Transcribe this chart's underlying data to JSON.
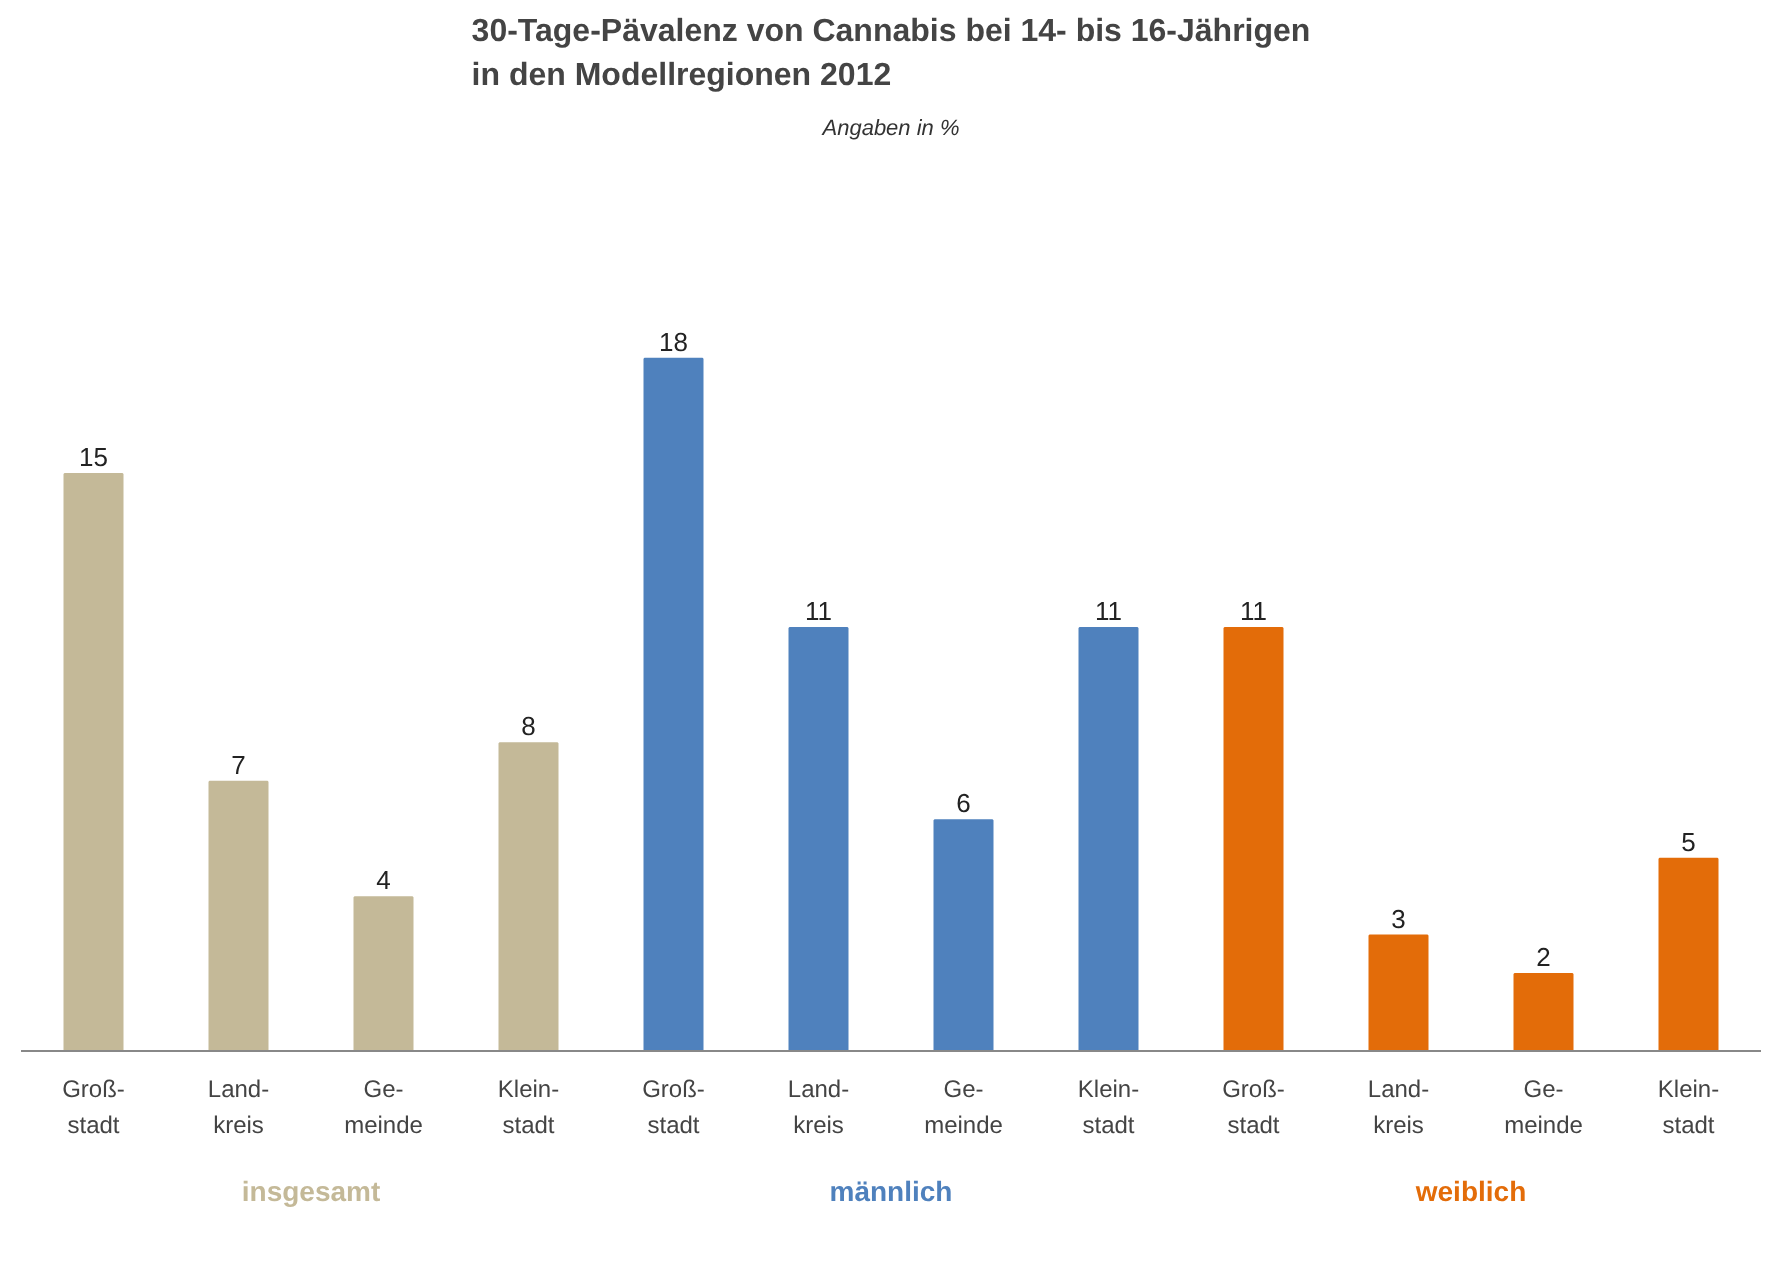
{
  "chart_data": {
    "type": "bar",
    "title": "30-Tage-Pävalenz von Cannabis bei 14- bis 16-Jährigen\nin den Modellregionen 2012",
    "subtitle": "Angaben in %",
    "categories": [
      "Groß-\nstadt",
      "Land-\nkreis",
      "Ge-\nmeinde",
      "Klein-\nstadt",
      "Groß-\nstadt",
      "Land-\nkreis",
      "Ge-\nmeinde",
      "Klein-\nstadt",
      "Groß-\nstadt",
      "Land-\nkreis",
      "Ge-\nmeinde",
      "Klein-\nstadt"
    ],
    "series": [
      {
        "name": "insgesamt",
        "color": "#c4b998",
        "values": [
          15,
          7,
          4,
          8,
          null,
          null,
          null,
          null,
          null,
          null,
          null,
          null
        ]
      },
      {
        "name": "männlich",
        "color": "#4f81bd",
        "values": [
          null,
          null,
          null,
          null,
          18,
          11,
          6,
          11,
          null,
          null,
          null,
          null
        ]
      },
      {
        "name": "weiblich",
        "color": "#e36c09",
        "values": [
          null,
          null,
          null,
          null,
          null,
          null,
          null,
          null,
          11,
          3,
          2,
          5
        ]
      }
    ],
    "data_labels": true,
    "grid": false,
    "legend": false
  }
}
